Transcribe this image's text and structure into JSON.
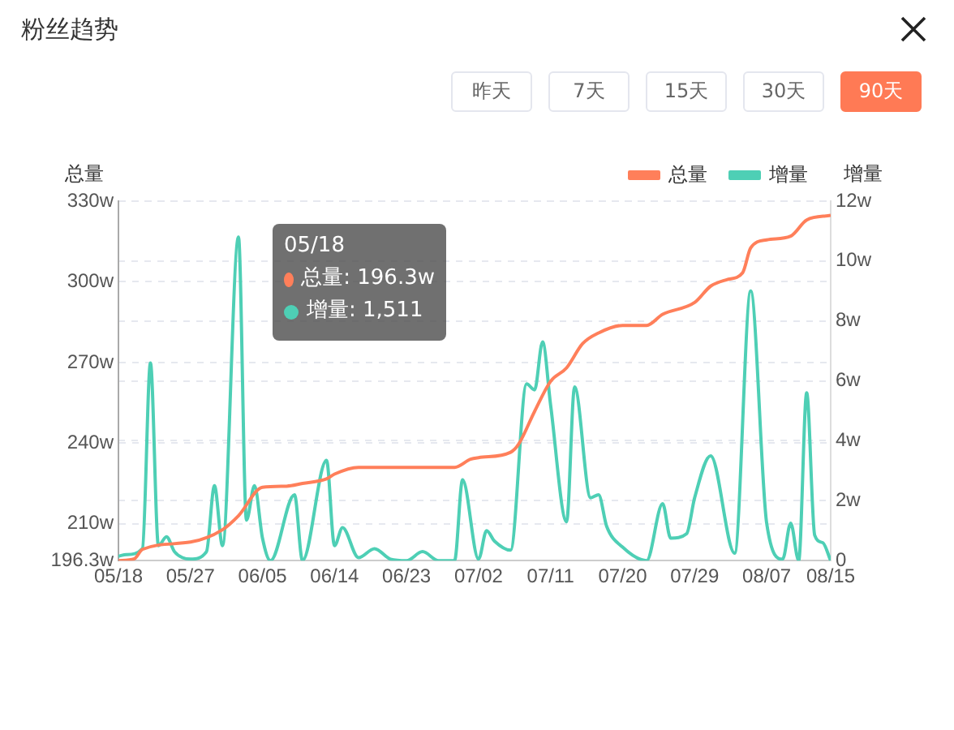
{
  "chart_data": {
    "type": "line",
    "title": "粉丝趋势",
    "ylabel": "总量",
    "y2label": "增量",
    "annotations": [
      "昨天",
      "7天",
      "15天",
      "30天",
      "90天",
      "05/18",
      "总量: 196.3w",
      "增量: 1,511"
    ],
    "xlim": [
      "--05-18",
      "--08-15"
    ],
    "xticks": [
      {
        "value": "--05-18",
        "label": "05/18"
      },
      {
        "value": "--05-27",
        "label": "05/27"
      },
      {
        "value": "--06-05",
        "label": "06/05"
      },
      {
        "value": "--06-14",
        "label": "06/14"
      },
      {
        "value": "--06-23",
        "label": "06/23"
      },
      {
        "value": "--07-02",
        "label": "07/02"
      },
      {
        "value": "--07-11",
        "label": "07/11"
      },
      {
        "value": "--07-20",
        "label": "07/20"
      },
      {
        "value": "--07-29",
        "label": "07/29"
      },
      {
        "value": "--08-07",
        "label": "08/07"
      },
      {
        "value": "--08-15",
        "label": "08/15"
      }
    ],
    "ylim": [
      196.3,
      330
    ],
    "yticks": [
      {
        "value": 196.3,
        "label": "196.3w"
      },
      {
        "value": 210,
        "label": "210w"
      },
      {
        "value": 240,
        "label": "240w"
      },
      {
        "value": 270,
        "label": "270w"
      },
      {
        "value": 300,
        "label": "300w"
      },
      {
        "value": 330,
        "label": "330w"
      }
    ],
    "y2lim": [
      0,
      12
    ],
    "y2ticks": [
      0,
      {
        "value": 2,
        "label": "2w"
      },
      {
        "value": 4,
        "label": "4w"
      },
      {
        "value": 6,
        "label": "6w"
      },
      {
        "value": 8,
        "label": "8w"
      },
      {
        "value": 10,
        "label": "10w"
      },
      {
        "value": 12,
        "label": "12w"
      }
    ],
    "grid": "y",
    "legend": "top right",
    "line_style": "solid",
    "series": [
      {
        "name": "总量",
        "color": "#ff7f5a",
        "x": [
          "--05-18",
          "--05-20",
          "--05-21",
          "--05-27",
          "--05-31",
          "--06-02",
          "--06-05",
          "--06-08",
          "--06-10",
          "--06-13",
          "--06-14",
          "--06-17",
          "--06-23",
          "--06-29",
          "--07-01",
          "--07-02",
          "--07-06",
          "--07-07",
          "--07-09",
          "--07-11",
          "--07-13",
          "--07-15",
          "--07-17",
          "--07-20",
          "--07-23",
          "--07-25",
          "--07-29",
          "--07-31",
          "--08-02",
          "--08-04",
          "--08-05",
          "--08-07",
          "--08-10",
          "--08-12",
          "--08-15"
        ],
        "values": [
          196.3,
          197,
          200.5,
          203.2,
          207.8,
          213,
          223.6,
          224,
          225,
          226.7,
          228.5,
          231,
          231,
          231,
          234,
          234.6,
          236.6,
          239.6,
          251.8,
          263,
          268,
          277,
          281,
          283.8,
          283.8,
          287.9,
          292.3,
          298.4,
          300.8,
          303.4,
          312.6,
          315.6,
          317,
          323,
          324.7
        ]
      },
      {
        "name": "增量",
        "color": "#4ecfb5",
        "axis": "y2",
        "x": [
          "--05-18",
          "--05-19",
          "--05-21",
          "--05-22",
          "--05-23",
          "--05-24",
          "--05-25",
          "--05-26",
          "--05-27",
          "--05-29",
          "--05-30",
          "--05-31",
          "--06-02",
          "--06-03",
          "--06-04",
          "--06-05",
          "--06-06",
          "--06-09",
          "--06-10",
          "--06-13",
          "--06-14",
          "--06-15",
          "--06-17",
          "--06-19",
          "--06-21",
          "--06-23",
          "--06-25",
          "--06-27",
          "--06-29",
          "--06-30",
          "--07-02",
          "--07-03",
          "--07-04",
          "--07-06",
          "--07-08",
          "--07-09",
          "--07-10",
          "--07-11",
          "--07-13",
          "--07-14",
          "--07-16",
          "--07-17",
          "--07-18",
          "--07-20",
          "--07-23",
          "--07-25",
          "--07-26",
          "--07-28",
          "--07-29",
          "--07-31",
          "--08-03",
          "--08-05",
          "--08-07",
          "--08-09",
          "--08-10",
          "--08-11",
          "--08-12",
          "--08-13",
          "--08-14",
          "--08-15"
        ],
        "values": [
          0.15,
          0.2,
          0.4,
          6.6,
          0.5,
          0.8,
          0.3,
          0.1,
          0.05,
          0.3,
          2.5,
          0.5,
          10.8,
          1.35,
          2.5,
          0.75,
          0,
          2.2,
          0,
          3.35,
          0.5,
          1.1,
          0.1,
          0.4,
          0.05,
          0,
          0.3,
          0,
          0,
          2.7,
          0.05,
          1,
          0.65,
          0.35,
          5.9,
          5.7,
          7.3,
          5.2,
          1.3,
          5.8,
          2.1,
          2.2,
          1.15,
          0.45,
          0,
          1.9,
          0.75,
          0.9,
          2.1,
          3.5,
          0.25,
          9,
          1.25,
          0.05,
          1.25,
          0,
          5.6,
          0.85,
          0.6,
          0
        ]
      }
    ]
  }
}
